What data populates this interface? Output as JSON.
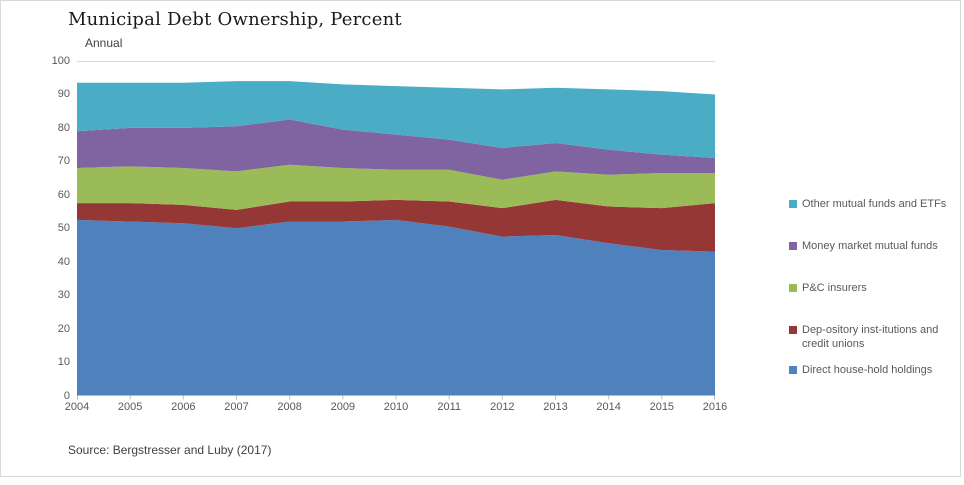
{
  "footer": {
    "source": "Source: Bergstresser and Luby (2017)"
  },
  "colors": {
    "frame_border": "#D9D9D9",
    "gridline": "#D9D9D9",
    "tick_mark": "#BFBFBF",
    "axis_text": "#595959",
    "title_text": "#1A1A1A",
    "body_text": "#404040",
    "legend_text": "#595959"
  },
  "chart_data": {
    "type": "area",
    "stacked": true,
    "title": "Municipal Debt Ownership, Percent",
    "subtitle": "Annual",
    "xlabel": "",
    "ylabel": "",
    "ylim": [
      0,
      100
    ],
    "y_ticks": [
      0,
      10,
      20,
      30,
      40,
      50,
      60,
      70,
      80,
      90,
      100
    ],
    "grid": "single gridline at y=100 only",
    "legend_position": "right",
    "categories": [
      2004,
      2005,
      2006,
      2007,
      2008,
      2009,
      2010,
      2011,
      2012,
      2013,
      2014,
      2015,
      2016
    ],
    "series": [
      {
        "name": "Direct house-hold holdings",
        "color": "#4F81BD",
        "values": [
          52.5,
          52.0,
          51.5,
          50.0,
          52.0,
          52.0,
          52.5,
          50.5,
          47.5,
          48.0,
          45.5,
          43.5,
          43.0
        ]
      },
      {
        "name": "Dep-ository inst-itutions and credit unions",
        "color": "#953735",
        "values": [
          5.0,
          5.5,
          5.5,
          5.5,
          6.0,
          6.0,
          6.0,
          7.5,
          8.5,
          10.5,
          11.0,
          12.5,
          14.5
        ]
      },
      {
        "name": "P&C insurers",
        "color": "#9BBB59",
        "values": [
          10.5,
          11.0,
          11.0,
          11.5,
          11.0,
          10.0,
          9.0,
          9.5,
          8.5,
          8.5,
          9.5,
          10.5,
          9.0
        ]
      },
      {
        "name": "Money market mutual funds",
        "color": "#8064A2",
        "values": [
          11.0,
          11.5,
          12.0,
          13.5,
          13.5,
          11.5,
          10.5,
          9.0,
          9.5,
          8.5,
          7.5,
          5.5,
          4.5
        ]
      },
      {
        "name": "Other mutual funds and ETFs",
        "color": "#4BACC6",
        "values": [
          14.5,
          13.5,
          13.5,
          13.5,
          11.5,
          13.5,
          14.5,
          15.5,
          17.5,
          16.5,
          18.0,
          19.0,
          19.0
        ]
      }
    ],
    "stack_totals": [
      93.5,
      93.5,
      93.5,
      94.0,
      94.0,
      93.0,
      92.5,
      92.0,
      91.5,
      92.0,
      91.5,
      91.0,
      90.0
    ]
  }
}
